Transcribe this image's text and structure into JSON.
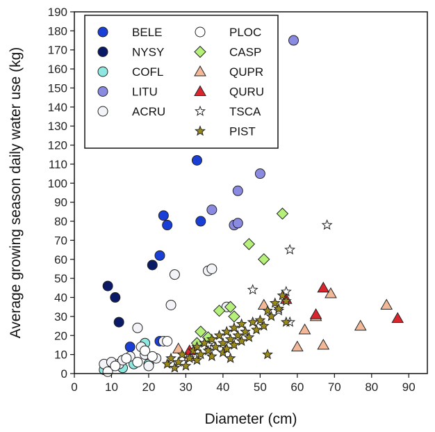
{
  "chart_data": {
    "type": "scatter",
    "title": "",
    "xlabel": "Diameter (cm)",
    "ylabel": "Average growing season daily water use (kg)",
    "xlim": [
      0,
      95
    ],
    "ylim": [
      0,
      190
    ],
    "xticks": [
      0,
      10,
      20,
      30,
      40,
      50,
      60,
      70,
      80,
      90
    ],
    "yticks": [
      0,
      10,
      20,
      30,
      40,
      50,
      60,
      70,
      80,
      90,
      100,
      110,
      120,
      130,
      140,
      150,
      160,
      170,
      180,
      190
    ],
    "grid": false,
    "legend_position": "top-left",
    "series": [
      {
        "name": "BELE",
        "marker": "circle",
        "color": "#1a3fd6",
        "points": [
          [
            15,
            14
          ],
          [
            23,
            17
          ],
          [
            23,
            62
          ],
          [
            24,
            83
          ],
          [
            25,
            78
          ],
          [
            33,
            112
          ],
          [
            34,
            80
          ]
        ]
      },
      {
        "name": "NYSY",
        "marker": "circle",
        "color": "#0a1a66",
        "points": [
          [
            9,
            46
          ],
          [
            11,
            40
          ],
          [
            12,
            27
          ],
          [
            21,
            57
          ]
        ]
      },
      {
        "name": "COFL",
        "marker": "circle",
        "color": "#8fe8e0",
        "points": [
          [
            8,
            2
          ],
          [
            9,
            3
          ],
          [
            13,
            3
          ],
          [
            16,
            5
          ],
          [
            19,
            16
          ],
          [
            20,
            5
          ]
        ]
      },
      {
        "name": "LITU",
        "marker": "circle",
        "color": "#8a8ae0",
        "points": [
          [
            37,
            86
          ],
          [
            43,
            78
          ],
          [
            44,
            96
          ],
          [
            44,
            79
          ],
          [
            50,
            105
          ],
          [
            59,
            175
          ]
        ]
      },
      {
        "name": "ACRU",
        "marker": "circle",
        "color": "#f2f4f8",
        "points": [
          [
            8,
            5
          ],
          [
            10,
            6
          ],
          [
            12,
            5
          ],
          [
            13,
            7
          ],
          [
            15,
            9
          ],
          [
            17,
            24
          ],
          [
            18,
            14
          ],
          [
            19,
            10
          ],
          [
            20,
            4
          ],
          [
            22,
            8
          ],
          [
            24,
            17
          ],
          [
            26,
            36
          ],
          [
            27,
            52
          ],
          [
            36,
            54
          ],
          [
            37,
            55
          ],
          [
            41,
            35
          ]
        ]
      },
      {
        "name": "PLOC",
        "marker": "circle",
        "color": "#ffffff",
        "points": [
          [
            9,
            1
          ],
          [
            11,
            4
          ],
          [
            14,
            8
          ],
          [
            17,
            6
          ],
          [
            19,
            12
          ],
          [
            21,
            9
          ],
          [
            25,
            17
          ]
        ]
      },
      {
        "name": "CASP",
        "marker": "diamond",
        "color": "#b5f07a",
        "points": [
          [
            33,
            16
          ],
          [
            34,
            22
          ],
          [
            36,
            19
          ],
          [
            39,
            33
          ],
          [
            42,
            35
          ],
          [
            43,
            30
          ],
          [
            47,
            68
          ],
          [
            51,
            60
          ],
          [
            56,
            84
          ]
        ]
      },
      {
        "name": "QUPR",
        "marker": "triangle",
        "color": "#f3b898",
        "points": [
          [
            28,
            13
          ],
          [
            31,
            9
          ],
          [
            51,
            36
          ],
          [
            60,
            14
          ],
          [
            62,
            23
          ],
          [
            65,
            30
          ],
          [
            67,
            15
          ],
          [
            69,
            42
          ],
          [
            77,
            25
          ],
          [
            84,
            36
          ]
        ]
      },
      {
        "name": "QURU",
        "marker": "triangle",
        "color": "#d9262e",
        "points": [
          [
            31,
            12
          ],
          [
            57,
            39
          ],
          [
            65,
            31
          ],
          [
            67,
            45
          ],
          [
            87,
            29
          ]
        ]
      },
      {
        "name": "TSCA",
        "marker": "star",
        "color": "#ffffff",
        "points": [
          [
            36,
            15
          ],
          [
            48,
            44
          ],
          [
            55,
            33
          ],
          [
            57,
            43
          ],
          [
            58,
            65
          ],
          [
            58,
            27
          ],
          [
            68,
            78
          ]
        ]
      },
      {
        "name": "PIST",
        "marker": "star",
        "color": "#9a8a1a",
        "points": [
          [
            25,
            5
          ],
          [
            26,
            8
          ],
          [
            27,
            3
          ],
          [
            28,
            6
          ],
          [
            29,
            10
          ],
          [
            30,
            4
          ],
          [
            31,
            8
          ],
          [
            32,
            12
          ],
          [
            33,
            7
          ],
          [
            33,
            14
          ],
          [
            34,
            10
          ],
          [
            35,
            16
          ],
          [
            36,
            12
          ],
          [
            37,
            9
          ],
          [
            37,
            18
          ],
          [
            38,
            14
          ],
          [
            39,
            20
          ],
          [
            40,
            11
          ],
          [
            40,
            16
          ],
          [
            41,
            13
          ],
          [
            41,
            22
          ],
          [
            42,
            8
          ],
          [
            42,
            18
          ],
          [
            43,
            15
          ],
          [
            43,
            24
          ],
          [
            44,
            20
          ],
          [
            45,
            17
          ],
          [
            45,
            26
          ],
          [
            46,
            22
          ],
          [
            47,
            19
          ],
          [
            48,
            27
          ],
          [
            49,
            23
          ],
          [
            50,
            28
          ],
          [
            51,
            25
          ],
          [
            52,
            33
          ],
          [
            53,
            30
          ],
          [
            54,
            37
          ],
          [
            55,
            34
          ],
          [
            56,
            41
          ],
          [
            57,
            38
          ],
          [
            57,
            27
          ],
          [
            52,
            10
          ]
        ]
      }
    ]
  }
}
